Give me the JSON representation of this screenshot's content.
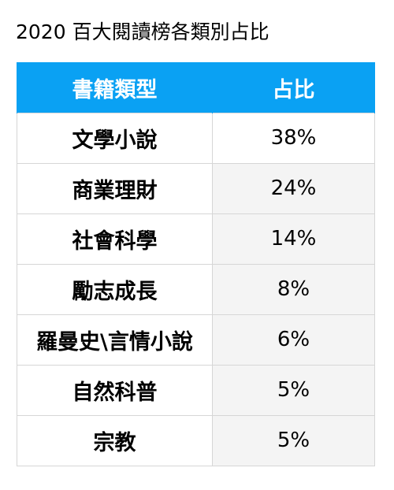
{
  "title": "2020 百大閱讀榜各類別占比",
  "table": {
    "headers": [
      "書籍類型",
      "占比"
    ],
    "rows": [
      {
        "category": "文學小說",
        "share": "38%"
      },
      {
        "category": "商業理財",
        "share": "24%"
      },
      {
        "category": "社會科學",
        "share": "14%"
      },
      {
        "category": "勵志成長",
        "share": "8%"
      },
      {
        "category": "羅曼史\\言情小說",
        "share": "6%"
      },
      {
        "category": "自然科普",
        "share": "5%"
      },
      {
        "category": "宗教",
        "share": "5%"
      }
    ],
    "header_color": "#0aa1f3"
  }
}
